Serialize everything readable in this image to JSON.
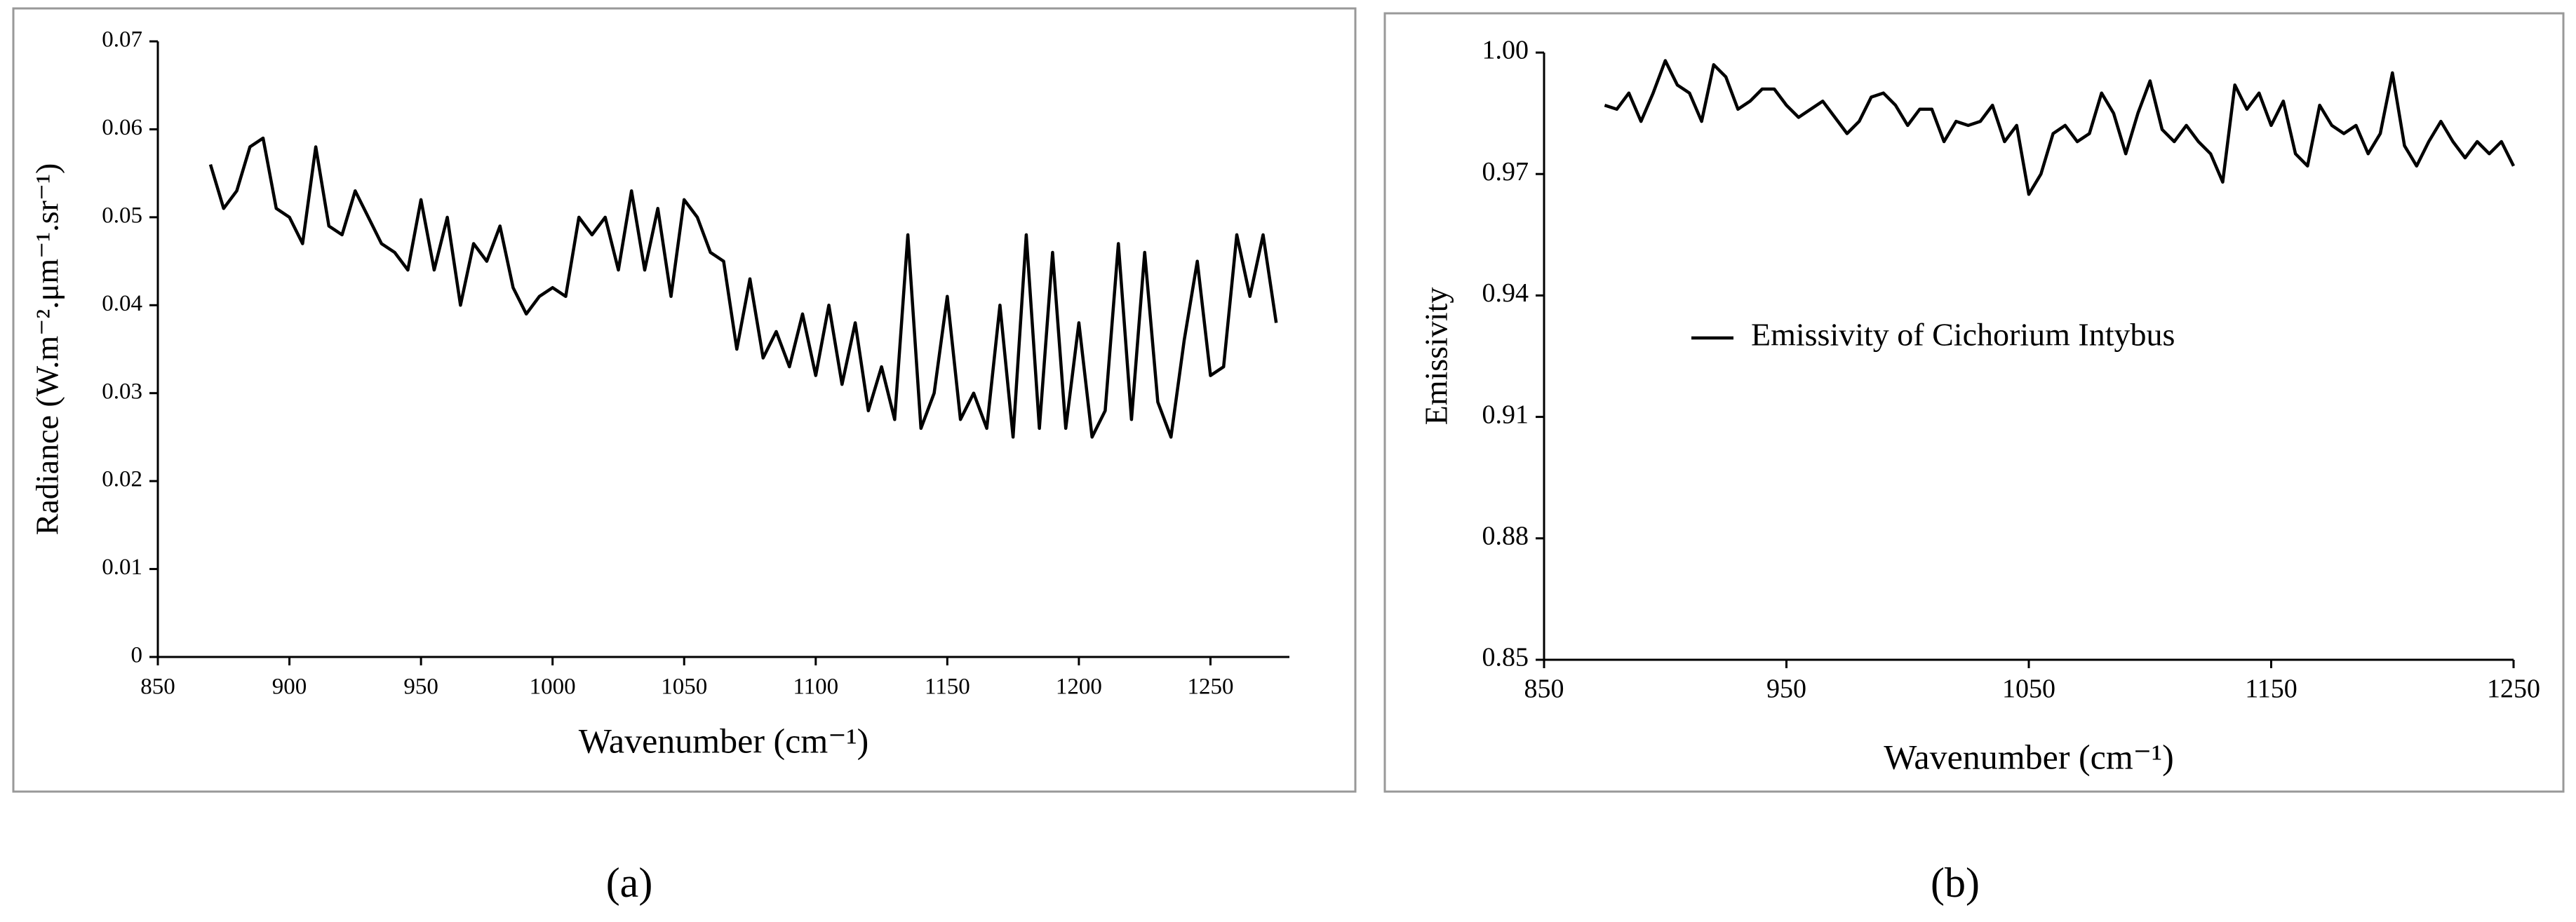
{
  "chart_data": [
    {
      "type": "line",
      "caption": "(a)",
      "xlabel": "Wavenumber (cm⁻¹)",
      "ylabel": "Radiance (W.m⁻².μm⁻¹.sr⁻¹)",
      "x": [
        870,
        875,
        880,
        885,
        890,
        895,
        900,
        905,
        910,
        915,
        920,
        925,
        930,
        935,
        940,
        945,
        950,
        955,
        960,
        965,
        970,
        975,
        980,
        985,
        990,
        995,
        1000,
        1005,
        1010,
        1015,
        1020,
        1025,
        1030,
        1035,
        1040,
        1045,
        1050,
        1055,
        1060,
        1065,
        1070,
        1075,
        1080,
        1085,
        1090,
        1095,
        1100,
        1105,
        1110,
        1115,
        1120,
        1125,
        1130,
        1135,
        1140,
        1145,
        1150,
        1155,
        1160,
        1165,
        1170,
        1175,
        1180,
        1185,
        1190,
        1195,
        1200,
        1205,
        1210,
        1215,
        1220,
        1225,
        1230,
        1235,
        1240,
        1245,
        1250,
        1255,
        1260,
        1265,
        1270,
        1275
      ],
      "values": [
        0.056,
        0.051,
        0.053,
        0.058,
        0.059,
        0.051,
        0.05,
        0.047,
        0.058,
        0.049,
        0.048,
        0.053,
        0.05,
        0.047,
        0.046,
        0.044,
        0.052,
        0.044,
        0.05,
        0.04,
        0.047,
        0.045,
        0.049,
        0.042,
        0.039,
        0.041,
        0.042,
        0.041,
        0.05,
        0.048,
        0.05,
        0.044,
        0.053,
        0.044,
        0.051,
        0.041,
        0.052,
        0.05,
        0.046,
        0.045,
        0.035,
        0.043,
        0.034,
        0.037,
        0.033,
        0.039,
        0.032,
        0.04,
        0.031,
        0.038,
        0.028,
        0.033,
        0.027,
        0.048,
        0.026,
        0.03,
        0.041,
        0.027,
        0.03,
        0.026,
        0.04,
        0.025,
        0.048,
        0.026,
        0.046,
        0.026,
        0.038,
        0.025,
        0.028,
        0.047,
        0.027,
        0.046,
        0.029,
        0.025,
        0.036,
        0.045,
        0.032,
        0.033,
        0.048,
        0.041,
        0.048,
        0.038
      ],
      "color": "#000000",
      "xlim": [
        850,
        1280
      ],
      "xticks": [
        850,
        900,
        950,
        1000,
        1050,
        1100,
        1150,
        1200,
        1250
      ],
      "ylim": [
        0,
        0.07
      ],
      "yticks": [
        0,
        0.01,
        0.02,
        0.03,
        0.04,
        0.05,
        0.06,
        0.07
      ]
    },
    {
      "type": "line",
      "caption": "(b)",
      "xlabel": "Wavenumber (cm⁻¹)",
      "ylabel": "Emissivity",
      "x": [
        875,
        880,
        885,
        890,
        895,
        900,
        905,
        910,
        915,
        920,
        925,
        930,
        935,
        940,
        945,
        950,
        955,
        960,
        965,
        970,
        975,
        980,
        985,
        990,
        995,
        1000,
        1005,
        1010,
        1015,
        1020,
        1025,
        1030,
        1035,
        1040,
        1045,
        1050,
        1055,
        1060,
        1065,
        1070,
        1075,
        1080,
        1085,
        1090,
        1095,
        1100,
        1105,
        1110,
        1115,
        1120,
        1125,
        1130,
        1135,
        1140,
        1145,
        1150,
        1155,
        1160,
        1165,
        1170,
        1175,
        1180,
        1185,
        1190,
        1195,
        1200,
        1205,
        1210,
        1215,
        1220,
        1225,
        1230,
        1235,
        1240,
        1245,
        1250
      ],
      "series": [
        {
          "name": "Emissivity of Cichorium Intybus",
          "color": "#000000",
          "values": [
            0.987,
            0.986,
            0.99,
            0.983,
            0.99,
            0.998,
            0.992,
            0.99,
            0.983,
            0.997,
            0.994,
            0.986,
            0.988,
            0.991,
            0.991,
            0.987,
            0.984,
            0.986,
            0.988,
            0.984,
            0.98,
            0.983,
            0.989,
            0.99,
            0.987,
            0.982,
            0.986,
            0.986,
            0.978,
            0.983,
            0.982,
            0.983,
            0.987,
            0.978,
            0.982,
            0.965,
            0.97,
            0.98,
            0.982,
            0.978,
            0.98,
            0.99,
            0.985,
            0.975,
            0.985,
            0.993,
            0.981,
            0.978,
            0.982,
            0.978,
            0.975,
            0.968,
            0.992,
            0.986,
            0.99,
            0.982,
            0.988,
            0.975,
            0.972,
            0.987,
            0.982,
            0.98,
            0.982,
            0.975,
            0.98,
            0.995,
            0.977,
            0.972,
            0.978,
            0.983,
            0.978,
            0.974,
            0.978,
            0.975,
            0.978,
            0.972
          ]
        }
      ],
      "xlim": [
        850,
        1250
      ],
      "xticks": [
        850,
        950,
        1050,
        1150,
        1250
      ],
      "ylim": [
        0.85,
        1.0
      ],
      "yticks": [
        0.85,
        0.88,
        0.91,
        0.94,
        0.97,
        {
          "value": 1.0,
          "label": "1.00"
        }
      ]
    }
  ]
}
